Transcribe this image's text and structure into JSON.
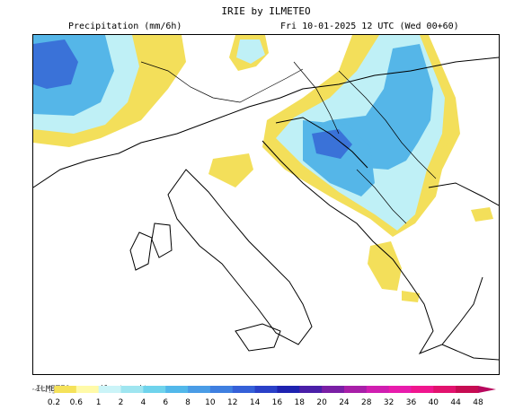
{
  "header": {
    "title": "IRIE by ILMETEO",
    "subtitle_left": "Precipitation (mm/6h)",
    "subtitle_right": "Fri 10-01-2025 12 UTC (Wed 00+60)"
  },
  "watermark": "ILMETEO: www.ilmeteo.it",
  "legend": {
    "ticks": [
      "0.2",
      "0.6",
      "1",
      "2",
      "4",
      "6",
      "8",
      "10",
      "12",
      "14",
      "16",
      "18",
      "20",
      "24",
      "28",
      "32",
      "36",
      "40",
      "44",
      "48"
    ],
    "colors": [
      "#f5e25a",
      "#fffaa8",
      "#cbf4f8",
      "#9fe5f0",
      "#6fd3ec",
      "#52b8ea",
      "#4a9ce6",
      "#3f7fe0",
      "#3560d8",
      "#2a40c8",
      "#1e22b0",
      "#4a1fa8",
      "#7a1fa5",
      "#a81fa8",
      "#d01eb0",
      "#e81cac",
      "#f0168e",
      "#e2126e",
      "#c60c52"
    ]
  },
  "map": {
    "region": "Italy & Balkans",
    "colors": {
      "coast": "#000000",
      "rain_light": "#f3df5a",
      "rain_low": "#bff0f6",
      "rain_mid": "#55b6e8",
      "rain_high": "#3a72d8"
    }
  }
}
